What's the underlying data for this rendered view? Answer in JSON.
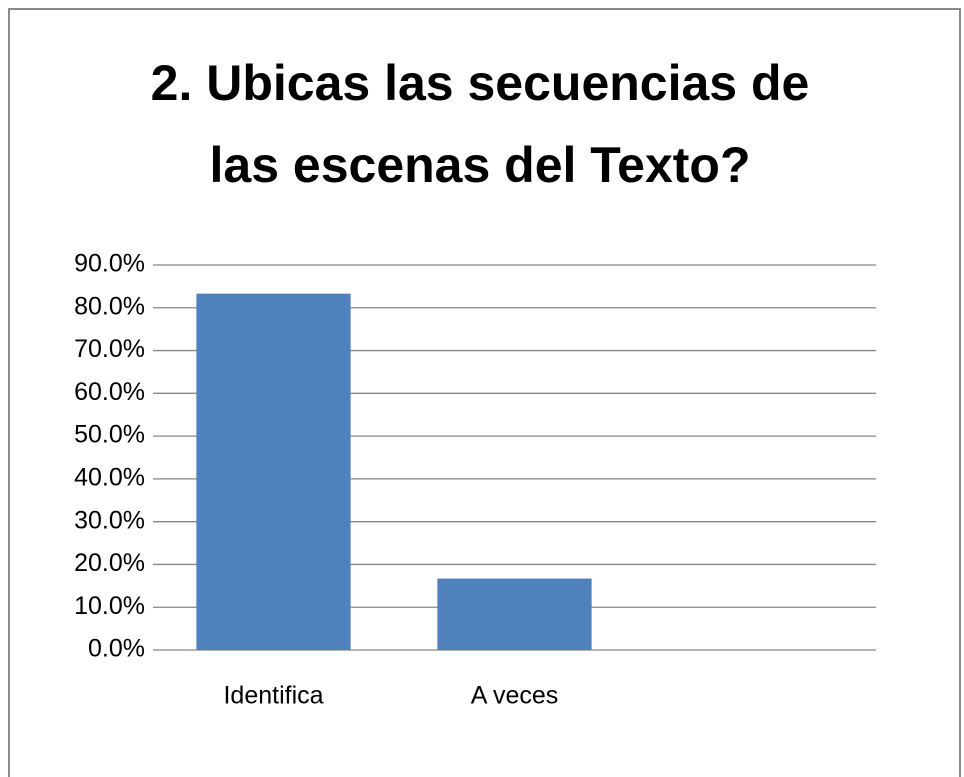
{
  "chart_data": {
    "type": "bar",
    "title": "2. Ubicas las secuencias de las escenas del Texto?",
    "categories": [
      "Identifica",
      "A veces",
      null
    ],
    "values": [
      83.3,
      16.7,
      null
    ],
    "color": "#4f81bd",
    "ylim": [
      0,
      90
    ],
    "yticks": [
      {
        "value": 0,
        "label": "0.0%"
      },
      {
        "value": 10,
        "label": "10.0%"
      },
      {
        "value": 20,
        "label": "20.0%"
      },
      {
        "value": 30,
        "label": "30.0%"
      },
      {
        "value": 40,
        "label": "40.0%"
      },
      {
        "value": 50,
        "label": "50.0%"
      },
      {
        "value": 60,
        "label": "60.0%"
      },
      {
        "value": 70,
        "label": "70.0%"
      },
      {
        "value": 80,
        "label": "80.0%"
      },
      {
        "value": 90,
        "label": "90.0%"
      }
    ],
    "grid": true
  }
}
